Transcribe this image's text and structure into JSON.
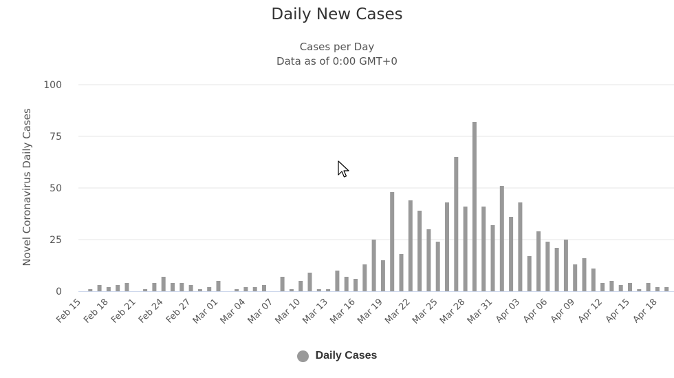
{
  "chart_data": {
    "type": "bar",
    "title": "Daily New Cases",
    "subtitle": [
      "Cases per Day",
      "Data as of 0:00 GMT+0"
    ],
    "ylabel": "Novel Coronavirus Daily Cases",
    "xlabel": "",
    "ylim": [
      0,
      100
    ],
    "yticks": [
      0,
      25,
      50,
      75,
      100
    ],
    "grid": true,
    "legend_position": "bottom-center",
    "colors": {
      "bar": "#999999",
      "grid": "#e6e6e6",
      "axis": "#ccd6eb"
    },
    "categories": [
      "Feb 15",
      "Feb 16",
      "Feb 17",
      "Feb 18",
      "Feb 19",
      "Feb 20",
      "Feb 21",
      "Feb 22",
      "Feb 23",
      "Feb 24",
      "Feb 25",
      "Feb 26",
      "Feb 27",
      "Feb 28",
      "Feb 29",
      "Mar 01",
      "Mar 02",
      "Mar 03",
      "Mar 04",
      "Mar 05",
      "Mar 06",
      "Mar 07",
      "Mar 08",
      "Mar 09",
      "Mar 10",
      "Mar 11",
      "Mar 12",
      "Mar 13",
      "Mar 14",
      "Mar 15",
      "Mar 16",
      "Mar 17",
      "Mar 18",
      "Mar 19",
      "Mar 20",
      "Mar 21",
      "Mar 22",
      "Mar 23",
      "Mar 24",
      "Mar 25",
      "Mar 26",
      "Mar 27",
      "Mar 28",
      "Mar 29",
      "Mar 30",
      "Mar 31",
      "Apr 01",
      "Apr 02",
      "Apr 03",
      "Apr 04",
      "Apr 05",
      "Apr 06",
      "Apr 07",
      "Apr 08",
      "Apr 09",
      "Apr 10",
      "Apr 11",
      "Apr 12",
      "Apr 13",
      "Apr 14",
      "Apr 15",
      "Apr 16",
      "Apr 17",
      "Apr 18",
      "Apr 19"
    ],
    "tick_labels": [
      "Feb 15",
      "Feb 18",
      "Feb 21",
      "Feb 24",
      "Feb 27",
      "Mar 01",
      "Mar 04",
      "Mar 07",
      "Mar 10",
      "Mar 13",
      "Mar 16",
      "Mar 19",
      "Mar 22",
      "Mar 25",
      "Mar 28",
      "Mar 31",
      "Apr 03",
      "Apr 06",
      "Apr 09",
      "Apr 12",
      "Apr 15",
      "Apr 18"
    ],
    "series": [
      {
        "name": "Daily Cases",
        "values": [
          0,
          1,
          3,
          2,
          3,
          4,
          0,
          1,
          4,
          7,
          4,
          4,
          3,
          1,
          2,
          5,
          0,
          1,
          2,
          2,
          3,
          0,
          7,
          1,
          5,
          9,
          1,
          1,
          10,
          7,
          6,
          13,
          25,
          15,
          48,
          18,
          44,
          39,
          30,
          24,
          43,
          65,
          41,
          82,
          41,
          32,
          51,
          36,
          43,
          17,
          29,
          24,
          21,
          25,
          13,
          16,
          11,
          4,
          5,
          3,
          4,
          1,
          4,
          2,
          2
        ]
      }
    ]
  }
}
